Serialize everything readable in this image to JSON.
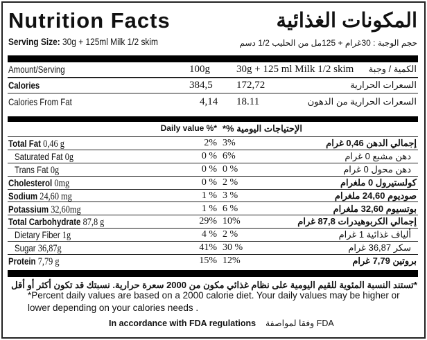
{
  "title": "Nutrition Facts",
  "title_ar": "المكونات الغذائية",
  "serving_label": "Serving Size:",
  "serving_value": "30g + 125ml Milk 1/2 skim",
  "serving_ar": "حجم الوجبة : 30غرام + 125مل من الحليب  1/2 دسم",
  "header": {
    "label": "Amount/Serving",
    "col1": "100g",
    "col2": "30g + 125 ml Milk 1/2 skim",
    "ar": "الكمية / وجبة"
  },
  "calories": {
    "label": "Calories",
    "col1": "384,5",
    "col2": "172,72",
    "ar": "السعرات الحرارية"
  },
  "cal_fat": {
    "label": "Calories From Fat",
    "col1": "4,14",
    "col2": "18.11",
    "ar": "السعرات الحرارية من الدهون"
  },
  "daily_value": {
    "en": "Daily value %*",
    "ar": "الإحتياجات اليومية %*"
  },
  "nutrients": [
    {
      "name": "Total Fat",
      "value": "0,46 g",
      "p1": "2%",
      "p2": "3%",
      "ar": "إجمالي الدهن  0,46 غرام",
      "bold": true
    },
    {
      "name": "Saturated Fat",
      "value": "0g",
      "p1": "0 %",
      "p2": "6%",
      "ar": "دهن مشبع 0 غرام",
      "bold": false
    },
    {
      "name": "Trans Fat",
      "value": "0g",
      "p1": "0 %",
      "p2": "0 %",
      "ar": "دهن محول 0 غرام",
      "bold": false
    },
    {
      "name": "Cholesterol",
      "value": "0mg",
      "p1": "0 %",
      "p2": "2 %",
      "ar": "كولستيرول 0 ملغرام",
      "bold": true
    },
    {
      "name": "Sodium",
      "value": "24,60 mg",
      "p1": "1 %",
      "p2": "3 %",
      "ar": "صوديوم  24,60  ملغرام",
      "bold": true
    },
    {
      "name": "Potassium",
      "value": "32,60mg",
      "p1": "1 %",
      "p2": "6 %",
      "ar": "بوتسيوم 32,60 ملغرام",
      "bold": true
    },
    {
      "name": "Total Carbohydrate",
      "value": "87,8 g",
      "p1": "29%",
      "p2": "10%",
      "ar": "إجمالي الكربوهيدرات   87,8 غرام",
      "bold": true
    },
    {
      "name": "Dietary Fiber",
      "value": "1g",
      "p1": "4 %",
      "p2": "2 %",
      "ar": "ألياف غذائية 1 غرام",
      "bold": false
    },
    {
      "name": "Sugar",
      "value": "36,87g",
      "p1": "41%",
      "p2": "30 %",
      "ar": "سكر  36,87 غرام",
      "bold": false
    },
    {
      "name": "Protein",
      "value": "7,79 g",
      "p1": "15%",
      "p2": "12%",
      "ar": "بروتين  7,79 غرام",
      "bold": true
    }
  ],
  "footnote_ar": "*تستند النسبة المئوية للقيم اليومية على نظام غذائي مكون من 2000 سعرة حرارية. نسبتك قد تكون أكثر أو أقل",
  "footnote": "*Percent daily values are based on a 2000 calorie diet. Your daily values may be higher or lower depending on your calories needs .",
  "fda": "In accordance with FDA regulations",
  "fda_ar": "وفقا لمواصفة FDA"
}
